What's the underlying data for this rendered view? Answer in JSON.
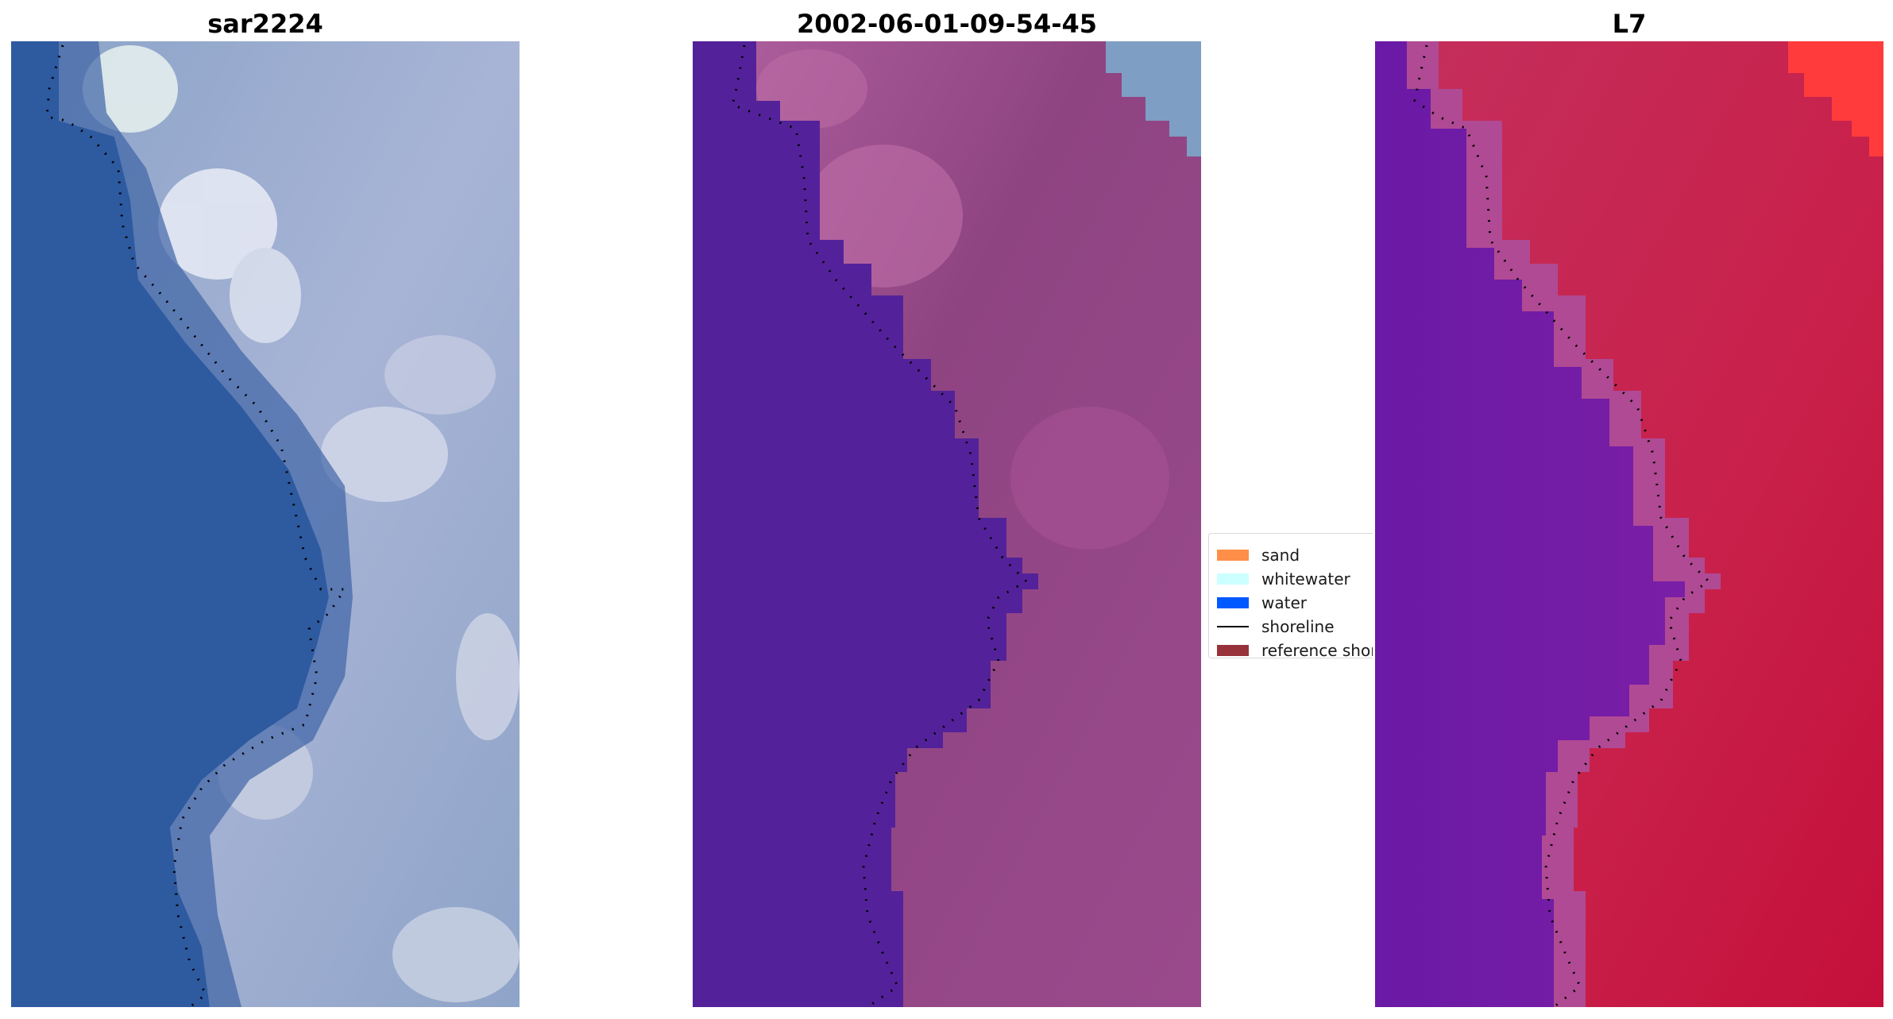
{
  "panels": [
    {
      "id": "rgb",
      "title": "sar2224"
    },
    {
      "id": "classified",
      "title": "2002-06-01-09-54-45"
    },
    {
      "id": "index",
      "title": "L7"
    }
  ],
  "legend": {
    "items": [
      {
        "label": "sand",
        "color": "#FF8E48",
        "kind": "swatch",
        "icon": "sand-swatch"
      },
      {
        "label": "whitewater",
        "color": "#CCFFFF",
        "kind": "swatch",
        "icon": "whitewater-swatch"
      },
      {
        "label": "water",
        "color": "#0059FF",
        "kind": "swatch",
        "icon": "water-swatch"
      },
      {
        "label": "shoreline",
        "color": "#000000",
        "kind": "line",
        "icon": "shoreline-line"
      },
      {
        "label": "reference shoreline",
        "color": "#98323A",
        "kind": "swatch",
        "icon": "reference-shoreline-swatch"
      }
    ]
  },
  "colors": {
    "water_rgb": "#2E5AA0",
    "class_water": "#53229A",
    "class_land": "#9A4A8C",
    "index_water": "#6E18A8",
    "index_land": "#C8204A"
  }
}
